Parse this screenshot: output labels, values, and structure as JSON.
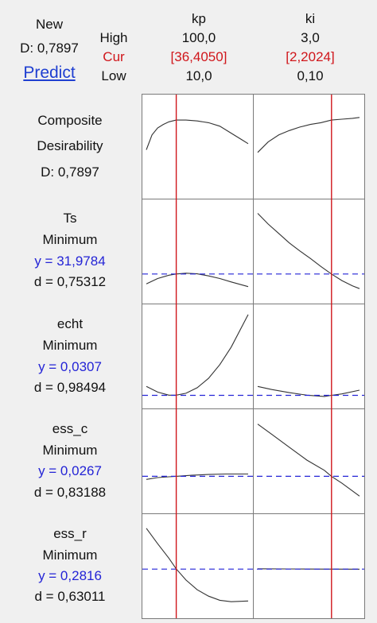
{
  "header": {
    "new_label": "New",
    "d_label": "D: 0,7897",
    "predict_label": "Predict",
    "row_labels": {
      "high": "High",
      "cur": "Cur",
      "low": "Low"
    }
  },
  "factors": [
    {
      "name": "kp",
      "high": "100,0",
      "cur": "[36,4050]",
      "low": "10,0",
      "cur_value": 36.405,
      "min": 10.0,
      "max": 100.0
    },
    {
      "name": "ki",
      "high": "3,0",
      "cur": "[2,2024]",
      "low": "0,10",
      "cur_value": 2.2024,
      "min": 0.1,
      "max": 3.0
    }
  ],
  "composite": {
    "line1": "Composite",
    "line2": "Desirability",
    "d": "D: 0,7897"
  },
  "responses": [
    {
      "name": "Ts",
      "goal": "Minimum",
      "y": "y = 31,9784",
      "d": "d = 0,75312"
    },
    {
      "name": "echt",
      "goal": "Minimum",
      "y": "y = 0,0307",
      "d": "d = 0,98494"
    },
    {
      "name": "ess_c",
      "goal": "Minimum",
      "y": "y = 0,0267",
      "d": "d = 0,83188"
    },
    {
      "name": "ess_r",
      "goal": "Minimum",
      "y": "y = 0,2816",
      "d": "d = 0,63011"
    }
  ],
  "colors": {
    "cur_line": "#d0161b",
    "ref_line": "#2424d6",
    "curve": "#333333",
    "frame": "#7a7a7a",
    "panel_bg": "#ffffff",
    "page_bg": "#f0f0f0"
  },
  "chart_data": {
    "type": "line",
    "description_note": "",
    "x_factors": [
      "kp",
      "ki"
    ],
    "x_ranges": {
      "kp": [
        10.0,
        100.0
      ],
      "ki": [
        0.1,
        3.0
      ]
    },
    "current_settings": {
      "kp": 36.405,
      "ki": 2.2024
    },
    "series": [
      {
        "row": "Composite Desirability",
        "factor": "kp",
        "x": [
          10,
          15,
          20,
          25,
          30,
          36.4,
          45,
          55,
          65,
          75,
          85,
          95,
          100
        ],
        "y": [
          0.45,
          0.62,
          0.7,
          0.74,
          0.77,
          0.79,
          0.79,
          0.78,
          0.76,
          0.72,
          0.64,
          0.56,
          0.52
        ]
      },
      {
        "row": "Composite Desirability",
        "factor": "ki",
        "x": [
          0.1,
          0.4,
          0.7,
          1.0,
          1.3,
          1.6,
          1.9,
          2.2,
          2.5,
          2.8,
          3.0
        ],
        "y": [
          0.42,
          0.54,
          0.62,
          0.67,
          0.71,
          0.74,
          0.76,
          0.79,
          0.8,
          0.81,
          0.82
        ]
      },
      {
        "row": "Ts",
        "factor": "kp",
        "x": [
          10,
          20,
          30,
          36.4,
          45,
          55,
          65,
          75,
          85,
          100
        ],
        "y": [
          30.5,
          31.3,
          31.8,
          31.98,
          32.1,
          32.0,
          31.7,
          31.3,
          30.8,
          30.1
        ]
      },
      {
        "row": "Ts",
        "factor": "ki",
        "x": [
          0.1,
          0.4,
          0.7,
          1.0,
          1.3,
          1.6,
          1.9,
          2.2,
          2.5,
          2.8,
          3.0
        ],
        "y": [
          41.0,
          39.4,
          38.0,
          36.6,
          35.4,
          34.3,
          33.1,
          31.98,
          31.0,
          30.2,
          29.8
        ]
      },
      {
        "row": "echt",
        "factor": "kp",
        "x": [
          10,
          20,
          30,
          36.4,
          45,
          55,
          65,
          75,
          85,
          100
        ],
        "y": [
          0.045,
          0.036,
          0.031,
          0.031,
          0.034,
          0.043,
          0.058,
          0.08,
          0.108,
          0.16
        ]
      },
      {
        "row": "echt",
        "factor": "ki",
        "x": [
          0.1,
          0.5,
          1.0,
          1.5,
          2.0,
          2.2,
          2.5,
          3.0
        ],
        "y": [
          0.045,
          0.04,
          0.035,
          0.031,
          0.029,
          0.0307,
          0.033,
          0.039
        ]
      },
      {
        "row": "ess_c",
        "factor": "kp",
        "x": [
          10,
          20,
          30,
          36.4,
          50,
          65,
          80,
          100
        ],
        "y": [
          0.0255,
          0.0262,
          0.0265,
          0.0267,
          0.0271,
          0.0274,
          0.0276,
          0.0276
        ]
      },
      {
        "row": "ess_c",
        "factor": "ki",
        "x": [
          0.1,
          0.5,
          1.0,
          1.5,
          2.0,
          2.2,
          2.5,
          3.0
        ],
        "y": [
          0.047,
          0.043,
          0.038,
          0.033,
          0.029,
          0.0267,
          0.024,
          0.019
        ]
      },
      {
        "row": "ess_r",
        "factor": "kp",
        "x": [
          10,
          20,
          30,
          36.4,
          45,
          55,
          65,
          75,
          85,
          100
        ],
        "y": [
          0.34,
          0.318,
          0.297,
          0.282,
          0.266,
          0.252,
          0.243,
          0.237,
          0.235,
          0.236
        ]
      },
      {
        "row": "ess_r",
        "factor": "ki",
        "x": [
          0.1,
          1.0,
          2.0,
          2.2,
          3.0
        ],
        "y": [
          0.282,
          0.2818,
          0.2816,
          0.2816,
          0.2815
        ]
      }
    ],
    "ylim_rows": {
      "Composite Desirability": [
        0.0,
        1.0
      ],
      "Ts": [
        29.0,
        42.0
      ],
      "echt": [
        0.025,
        0.165
      ],
      "ess_c": [
        0.016,
        0.05
      ],
      "ess_r": [
        0.225,
        0.35
      ]
    },
    "reference_values": {
      "Ts": 31.9784,
      "echt": 0.0307,
      "ess_c": 0.0267,
      "ess_r": 0.2816
    },
    "grid": false
  }
}
